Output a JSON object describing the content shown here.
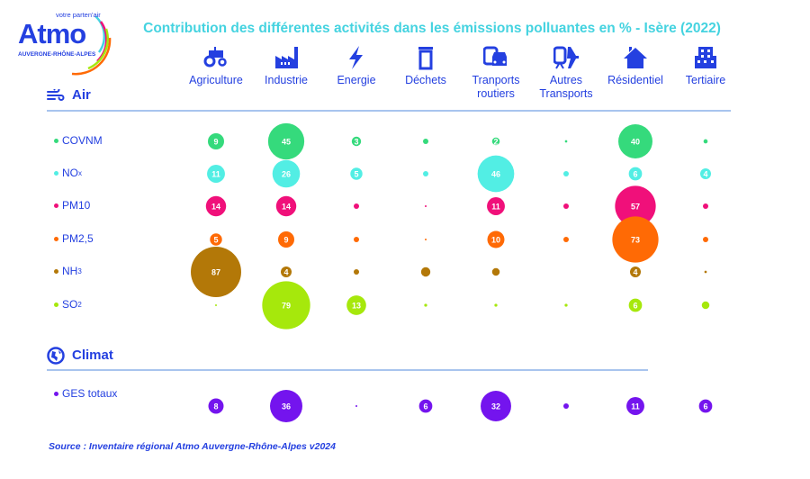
{
  "brand": {
    "logo_name": "Atmo",
    "logo_tagline": "votre parten'air",
    "logo_region": "AUVERGNE-RHÔNE-ALPES"
  },
  "colors": {
    "title": "#45d3e0",
    "brand_blue": "#2440e0",
    "rule": "#a8c4ee"
  },
  "sections": {
    "air": {
      "label": "Air",
      "icon": "wind-icon"
    },
    "climat": {
      "label": "Climat",
      "icon": "globe-icon"
    }
  },
  "source": "Source : Inventaire régional Atmo Auvergne-Rhône-Alpes v2024",
  "chart_data": {
    "type": "bubble-matrix",
    "title": "Contribution des différentes activités dans les émissions polluantes en % - Isère (2022)",
    "categories": [
      {
        "line1": "Agriculture",
        "line2": "",
        "icon": "tractor-icon"
      },
      {
        "line1": "Industrie",
        "line2": "",
        "icon": "factory-icon"
      },
      {
        "line1": "Energie",
        "line2": "",
        "icon": "lightning-icon"
      },
      {
        "line1": "Déchets",
        "line2": "",
        "icon": "trash-icon"
      },
      {
        "line1": "Tranports",
        "line2": "routiers",
        "icon": "bus-car-icon"
      },
      {
        "line1": "Autres",
        "line2": "Transports",
        "icon": "train-plane-icon"
      },
      {
        "line1": "Résidentiel",
        "line2": "",
        "icon": "house-icon"
      },
      {
        "line1": "Tertiaire",
        "line2": "",
        "icon": "building-icon"
      }
    ],
    "series": [
      {
        "name": "COVNM",
        "sub": "",
        "section": "air",
        "color": "#35da7c",
        "values": [
          9,
          45,
          3,
          1,
          2,
          0.2,
          40,
          0.6
        ],
        "labels": [
          "9",
          "45",
          "3",
          null,
          "2",
          null,
          "40",
          null
        ]
      },
      {
        "name": "NO",
        "sub": "x",
        "section": "air",
        "color": "#52eee4",
        "values": [
          11,
          26,
          5,
          1,
          46,
          1,
          6,
          4
        ],
        "labels": [
          "11",
          "26",
          "5",
          null,
          "46",
          null,
          "6",
          "4"
        ]
      },
      {
        "name": "PM10",
        "sub": "",
        "section": "air",
        "color": "#f0107a",
        "values": [
          14,
          14,
          1,
          0.1,
          11,
          1,
          57,
          1
        ],
        "labels": [
          "14",
          "14",
          null,
          null,
          "11",
          null,
          "57",
          null
        ]
      },
      {
        "name": "PM2,5",
        "sub": "",
        "section": "air",
        "color": "#ff6a05",
        "values": [
          5,
          9,
          1,
          0.1,
          10,
          1,
          73,
          1
        ],
        "labels": [
          "5",
          "9",
          null,
          null,
          "10",
          null,
          "73",
          null
        ]
      },
      {
        "name": "NH",
        "sub": "3",
        "section": "air",
        "color": "#b37808",
        "values": [
          87,
          4,
          1,
          3,
          2,
          0,
          4,
          0.2
        ],
        "labels": [
          "87",
          "4",
          null,
          null,
          null,
          null,
          "4",
          null
        ]
      },
      {
        "name": "SO",
        "sub": "2",
        "section": "air",
        "color": "#a6e80c",
        "values": [
          0.1,
          79,
          13,
          0.3,
          0.3,
          0.3,
          6,
          2
        ],
        "labels": [
          null,
          "79",
          "13",
          null,
          null,
          null,
          "6",
          null
        ]
      },
      {
        "name": "GES totaux",
        "sub": "",
        "section": "climat",
        "color": "#7414ee",
        "values": [
          8,
          36,
          0.1,
          6,
          32,
          1,
          11,
          6
        ],
        "labels": [
          "8",
          "36",
          null,
          "6",
          "32",
          null,
          "11",
          "6"
        ]
      }
    ],
    "unit": "%"
  }
}
